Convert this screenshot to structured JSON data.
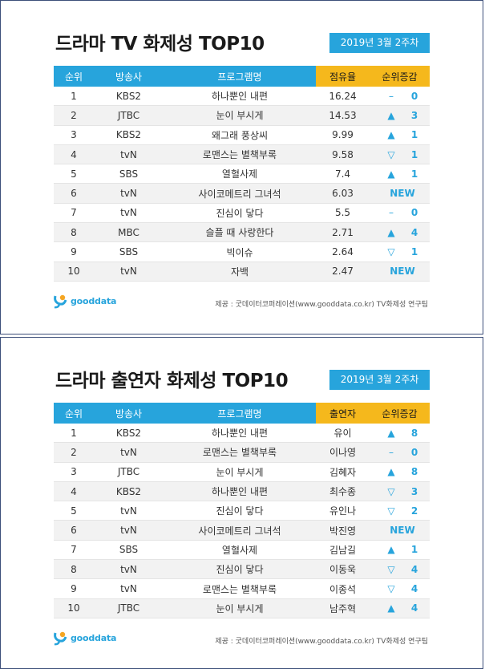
{
  "panels": [
    {
      "title": "드라마 TV 화제성 TOP10",
      "week": "2019년  3월 2주차",
      "headers": [
        "순위",
        "방송사",
        "프로그램명",
        "점유율",
        "순위증감"
      ],
      "rows": [
        {
          "rank": "1",
          "network": "KBS2",
          "program": "하나뿐인 내편",
          "value": "16.24",
          "change": "same",
          "delta": "0"
        },
        {
          "rank": "2",
          "network": "JTBC",
          "program": "눈이 부시게",
          "value": "14.53",
          "change": "up",
          "delta": "3"
        },
        {
          "rank": "3",
          "network": "KBS2",
          "program": "왜그래 풍상씨",
          "value": "9.99",
          "change": "up",
          "delta": "1"
        },
        {
          "rank": "4",
          "network": "tvN",
          "program": "로맨스는 별책부록",
          "value": "9.58",
          "change": "down",
          "delta": "1"
        },
        {
          "rank": "5",
          "network": "SBS",
          "program": "열혈사제",
          "value": "7.4",
          "change": "up",
          "delta": "1"
        },
        {
          "rank": "6",
          "network": "tvN",
          "program": "사이코메트리 그녀석",
          "value": "6.03",
          "change": "new",
          "delta": "NEW"
        },
        {
          "rank": "7",
          "network": "tvN",
          "program": "진심이 닿다",
          "value": "5.5",
          "change": "same",
          "delta": "0"
        },
        {
          "rank": "8",
          "network": "MBC",
          "program": "슬플 때 사랑한다",
          "value": "2.71",
          "change": "up",
          "delta": "4"
        },
        {
          "rank": "9",
          "network": "SBS",
          "program": "빅이슈",
          "value": "2.64",
          "change": "down",
          "delta": "1"
        },
        {
          "rank": "10",
          "network": "tvN",
          "program": "자백",
          "value": "2.47",
          "change": "new",
          "delta": "NEW"
        }
      ],
      "logo_text": "gooddata",
      "source": "제공 : 굿데이터코퍼레이션(www.gooddata.co.kr) TV화제성 연구팀"
    },
    {
      "title": "드라마 출연자 화제성 TOP10",
      "week": "2019년  3월 2주차",
      "headers": [
        "순위",
        "방송사",
        "프로그램명",
        "출연자",
        "순위증감"
      ],
      "rows": [
        {
          "rank": "1",
          "network": "KBS2",
          "program": "하나뿐인 내편",
          "value": "유이",
          "change": "up",
          "delta": "8"
        },
        {
          "rank": "2",
          "network": "tvN",
          "program": "로맨스는 별책부록",
          "value": "이나영",
          "change": "same",
          "delta": "0"
        },
        {
          "rank": "3",
          "network": "JTBC",
          "program": "눈이 부시게",
          "value": "김혜자",
          "change": "up",
          "delta": "8"
        },
        {
          "rank": "4",
          "network": "KBS2",
          "program": "하나뿐인 내편",
          "value": "최수종",
          "change": "down",
          "delta": "3"
        },
        {
          "rank": "5",
          "network": "tvN",
          "program": "진심이 닿다",
          "value": "유인나",
          "change": "down",
          "delta": "2"
        },
        {
          "rank": "6",
          "network": "tvN",
          "program": "사이코메트리 그녀석",
          "value": "박진영",
          "change": "new",
          "delta": "NEW"
        },
        {
          "rank": "7",
          "network": "SBS",
          "program": "열혈사제",
          "value": "김남길",
          "change": "up",
          "delta": "1"
        },
        {
          "rank": "8",
          "network": "tvN",
          "program": "진심이 닿다",
          "value": "이동욱",
          "change": "down",
          "delta": "4"
        },
        {
          "rank": "9",
          "network": "tvN",
          "program": "로맨스는 별책부록",
          "value": "이종석",
          "change": "down",
          "delta": "4"
        },
        {
          "rank": "10",
          "network": "JTBC",
          "program": "눈이 부시게",
          "value": "남주혁",
          "change": "up",
          "delta": "4"
        }
      ],
      "logo_text": "gooddata",
      "source": "제공 : 굿데이터코퍼레이션(www.gooddata.co.kr) TV화제성 연구팀"
    }
  ],
  "colors": {
    "accent": "#27a4dc",
    "highlight": "#f5b81c",
    "logo_orange": "#f5a623"
  },
  "icons": {
    "up": "triangle-up-icon",
    "down": "triangle-down-icon",
    "same": "dash-icon"
  }
}
